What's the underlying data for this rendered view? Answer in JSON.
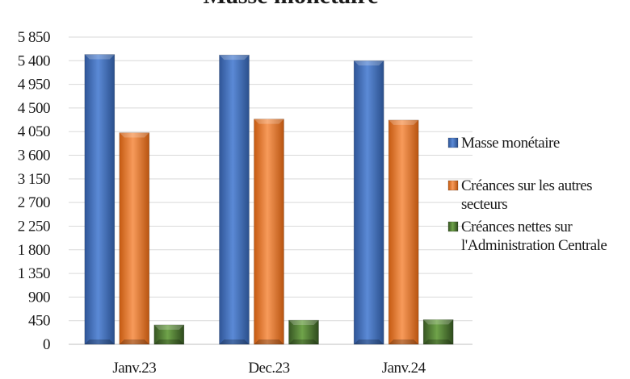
{
  "chart_data": {
    "type": "bar",
    "title": "Masse monétaire",
    "xlabel": "",
    "ylabel": "",
    "categories": [
      "Janv.23",
      "Dec.23",
      "Janv.24"
    ],
    "series": [
      {
        "name": "Masse monétaire",
        "color": "#4472C4",
        "values": [
          5520,
          5510,
          5400
        ]
      },
      {
        "name": "Créances sur les autres secteurs",
        "color": "#ED7D31",
        "values": [
          4030,
          4290,
          4270
        ]
      },
      {
        "name": "Créances nettes sur l'Administration Centrale",
        "color": "#548235",
        "values": [
          370,
          460,
          470
        ]
      }
    ],
    "ylim": [
      0,
      5850
    ],
    "yticks": [
      0,
      450,
      900,
      1350,
      1800,
      2250,
      2700,
      3150,
      3600,
      4050,
      4500,
      4950,
      5400,
      5850
    ],
    "ytick_labels": [
      "0",
      "450",
      "900",
      "1 350",
      "1 800",
      "2 250",
      "2 700",
      "3 150",
      "3 600",
      "4 050",
      "4 500",
      "4 950",
      "5 400",
      "5 850"
    ],
    "grid": true,
    "legend_position": "right",
    "legend_lines": [
      [
        "Masse monétaire"
      ],
      [
        "Créances sur les autres",
        "secteurs"
      ],
      [
        "Créances nettes sur",
        "l'Administration Centrale"
      ]
    ]
  }
}
